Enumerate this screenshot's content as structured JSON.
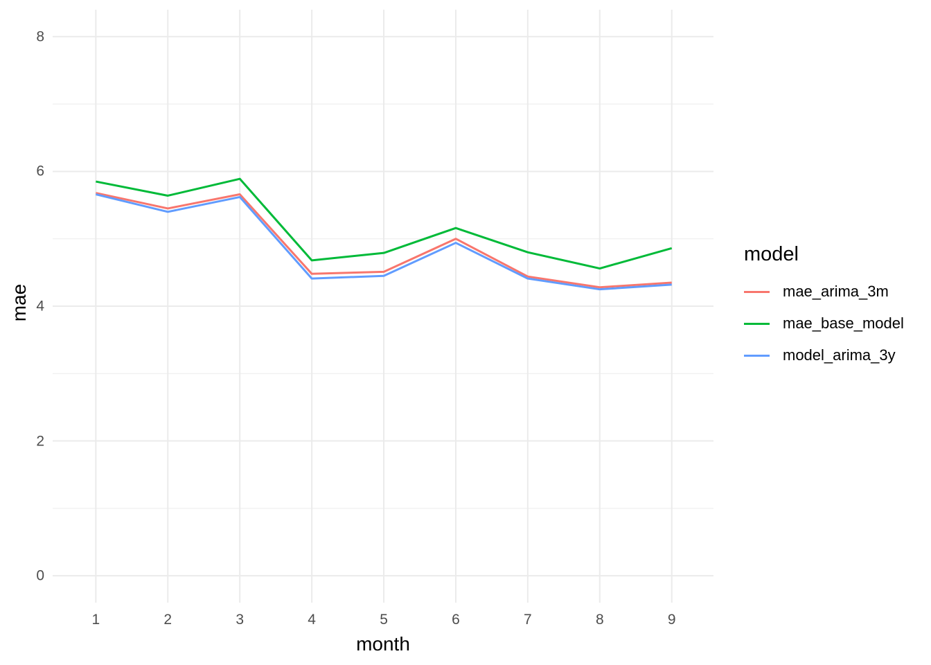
{
  "chart_data": {
    "type": "line",
    "title": "",
    "xlabel": "month",
    "ylabel": "mae",
    "x": [
      1,
      2,
      3,
      4,
      5,
      6,
      7,
      8,
      9
    ],
    "x_tick_labels": [
      "1",
      "2",
      "3",
      "4",
      "5",
      "6",
      "7",
      "8",
      "9"
    ],
    "y_tick_labels": [
      "0",
      "2",
      "4",
      "6",
      "8"
    ],
    "y_major_breaks": [
      0,
      2,
      4,
      6,
      8
    ],
    "y_minor_breaks": [
      1,
      3,
      5,
      7
    ],
    "x_major_breaks": [
      1,
      2,
      3,
      4,
      5,
      6,
      7,
      8,
      9
    ],
    "xlim": [
      0.4,
      9.58
    ],
    "ylim": [
      -0.4,
      8.4
    ],
    "grid": "on",
    "legend_position": "right",
    "legend_title": "model",
    "series": [
      {
        "name": "mae_arima_3m",
        "color": "#F8766D",
        "values": [
          5.68,
          5.45,
          5.66,
          4.48,
          4.51,
          5.0,
          4.44,
          4.28,
          4.35
        ]
      },
      {
        "name": "mae_base_model",
        "color": "#00BA38",
        "values": [
          5.85,
          5.64,
          5.89,
          4.68,
          4.79,
          5.16,
          4.8,
          4.56,
          4.86
        ]
      },
      {
        "name": "model_arima_3y",
        "color": "#619CFF",
        "values": [
          5.66,
          5.4,
          5.62,
          4.41,
          4.45,
          4.94,
          4.41,
          4.25,
          4.32
        ]
      }
    ],
    "colors": {
      "grid_major": "#EBEBEB",
      "grid_minor": "#F0F0F0",
      "tick_text": "#4d4d4d",
      "axis_title_text": "#000000"
    }
  }
}
